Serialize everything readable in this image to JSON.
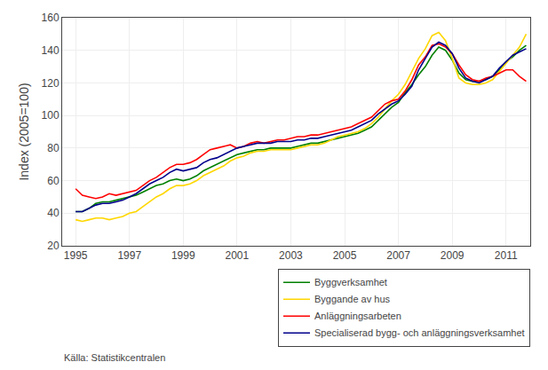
{
  "chart_data": {
    "type": "line",
    "ylabel": "Index (2005=100)",
    "annotations": [
      "Källa: Statistikcentralen"
    ],
    "xlim": [
      1994.5,
      2011.9
    ],
    "xticks": [
      1995,
      1997,
      1999,
      2001,
      2003,
      2005,
      2007,
      2009,
      2011
    ],
    "ylim": [
      20,
      160
    ],
    "yticks": [
      20,
      40,
      60,
      80,
      100,
      120,
      140,
      160
    ],
    "grid": true,
    "legend": "bottom",
    "x": [
      1995.0,
      1995.25,
      1995.5,
      1995.75,
      1996.0,
      1996.25,
      1996.5,
      1996.75,
      1997.0,
      1997.25,
      1997.5,
      1997.75,
      1998.0,
      1998.25,
      1998.5,
      1998.75,
      1999.0,
      1999.25,
      1999.5,
      1999.75,
      2000.0,
      2000.25,
      2000.5,
      2000.75,
      2001.0,
      2001.25,
      2001.5,
      2001.75,
      2002.0,
      2002.25,
      2002.5,
      2002.75,
      2003.0,
      2003.25,
      2003.5,
      2003.75,
      2004.0,
      2004.25,
      2004.5,
      2004.75,
      2005.0,
      2005.25,
      2005.5,
      2005.75,
      2006.0,
      2006.25,
      2006.5,
      2006.75,
      2007.0,
      2007.25,
      2007.5,
      2007.75,
      2008.0,
      2008.25,
      2008.5,
      2008.75,
      2009.0,
      2009.25,
      2009.5,
      2009.75,
      2010.0,
      2010.25,
      2010.5,
      2010.75,
      2011.0,
      2011.25,
      2011.5,
      2011.75
    ],
    "series": [
      {
        "name": "Byggverksamhet",
        "color": "#008000",
        "values": [
          41,
          41,
          43,
          46,
          47,
          47,
          48,
          49,
          50,
          51,
          53,
          55,
          57,
          58,
          60,
          61,
          60,
          61,
          63,
          66,
          68,
          70,
          72,
          74,
          76,
          77,
          78,
          79,
          79,
          80,
          80,
          80,
          80,
          81,
          82,
          83,
          83,
          84,
          85,
          86,
          87,
          88,
          89,
          91,
          93,
          97,
          101,
          105,
          108,
          114,
          119,
          125,
          130,
          137,
          142,
          140,
          134,
          126,
          122,
          121,
          121,
          122,
          124,
          128,
          133,
          136,
          140,
          143
        ]
      },
      {
        "name": "Byggande av hus",
        "color": "#FFD700",
        "values": [
          36,
          35,
          36,
          37,
          37,
          36,
          37,
          38,
          40,
          41,
          44,
          47,
          50,
          52,
          55,
          57,
          57,
          58,
          60,
          63,
          65,
          67,
          69,
          72,
          74,
          75,
          77,
          78,
          78,
          79,
          79,
          79,
          79,
          80,
          81,
          82,
          82,
          83,
          85,
          87,
          88,
          89,
          90,
          92,
          95,
          99,
          104,
          109,
          113,
          119,
          127,
          135,
          141,
          149,
          151,
          146,
          135,
          123,
          120,
          119,
          119,
          120,
          122,
          127,
          132,
          137,
          142,
          150
        ]
      },
      {
        "name": "Anläggningsarbeten",
        "color": "#FF0000",
        "values": [
          55,
          51,
          50,
          49,
          50,
          52,
          51,
          52,
          53,
          54,
          57,
          60,
          62,
          65,
          68,
          70,
          70,
          71,
          73,
          76,
          79,
          80,
          81,
          82,
          80,
          81,
          83,
          84,
          83,
          84,
          85,
          85,
          86,
          87,
          87,
          88,
          88,
          89,
          90,
          91,
          92,
          93,
          95,
          97,
          99,
          103,
          107,
          109,
          110,
          115,
          122,
          131,
          136,
          143,
          144,
          142,
          138,
          131,
          125,
          122,
          121,
          123,
          124,
          126,
          128,
          128,
          124,
          121
        ]
      },
      {
        "name": "Specialiserad bygg- och anläggningsverksamhet",
        "color": "#00008B",
        "values": [
          41,
          41,
          43,
          45,
          46,
          46,
          47,
          48,
          50,
          52,
          55,
          58,
          60,
          62,
          65,
          67,
          66,
          67,
          68,
          71,
          73,
          74,
          76,
          78,
          80,
          81,
          82,
          83,
          83,
          83,
          84,
          84,
          84,
          85,
          85,
          86,
          86,
          87,
          88,
          89,
          90,
          91,
          93,
          95,
          97,
          101,
          104,
          107,
          109,
          113,
          118,
          128,
          135,
          142,
          145,
          143,
          138,
          129,
          123,
          121,
          120,
          122,
          124,
          129,
          133,
          137,
          139,
          141
        ]
      }
    ]
  }
}
